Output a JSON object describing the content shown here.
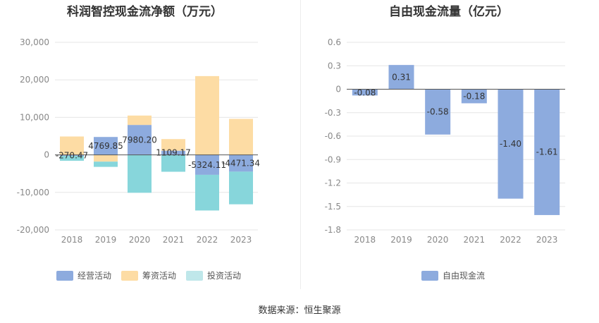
{
  "chart_data": [
    {
      "type": "bar",
      "stacked": true,
      "title": "科润智控现金流净额（万元）",
      "categories": [
        "2018",
        "2019",
        "2020",
        "2021",
        "2022",
        "2023"
      ],
      "yticks": [
        "30,000",
        "20,000",
        "10,000",
        "0",
        "-10,000",
        "-20,000"
      ],
      "ylim": [
        -20000,
        30000
      ],
      "series": [
        {
          "name": "经营活动",
          "color": "#8dabde",
          "values": [
            -270.47,
            4769.85,
            7980.2,
            1109.17,
            -5324.11,
            -4471.34
          ]
        },
        {
          "name": "筹资活动",
          "color": "#fddca4",
          "values": [
            4900,
            -1800,
            2500,
            3100,
            21000,
            9600
          ]
        },
        {
          "name": "投资活动",
          "color": "#87d6db",
          "values": [
            -1300,
            -1400,
            -10100,
            -4500,
            -9500,
            -8700
          ]
        }
      ],
      "data_labels": [
        "-270.47",
        "4769.85",
        "7980.20",
        "1109.17",
        "-5324.11",
        "-4471.34"
      ],
      "legend": "bottom"
    },
    {
      "type": "bar",
      "title": "自由现金流量（亿元）",
      "categories": [
        "2018",
        "2019",
        "2020",
        "2021",
        "2022",
        "2023"
      ],
      "yticks": [
        "0.6",
        "0.3",
        "0",
        "-0.3",
        "-0.6",
        "-0.9",
        "-1.2",
        "-1.5",
        "-1.8"
      ],
      "ylim": [
        -1.8,
        0.6
      ],
      "series": [
        {
          "name": "自由现金流",
          "color": "#8dabde",
          "values": [
            -0.08,
            0.31,
            -0.58,
            -0.18,
            -1.4,
            -1.61
          ]
        }
      ],
      "data_labels": [
        "-0.08",
        "0.31",
        "-0.58",
        "-0.18",
        "-1.40",
        "-1.61"
      ],
      "legend": "bottom"
    }
  ],
  "footer": "数据来源：恒生聚源"
}
